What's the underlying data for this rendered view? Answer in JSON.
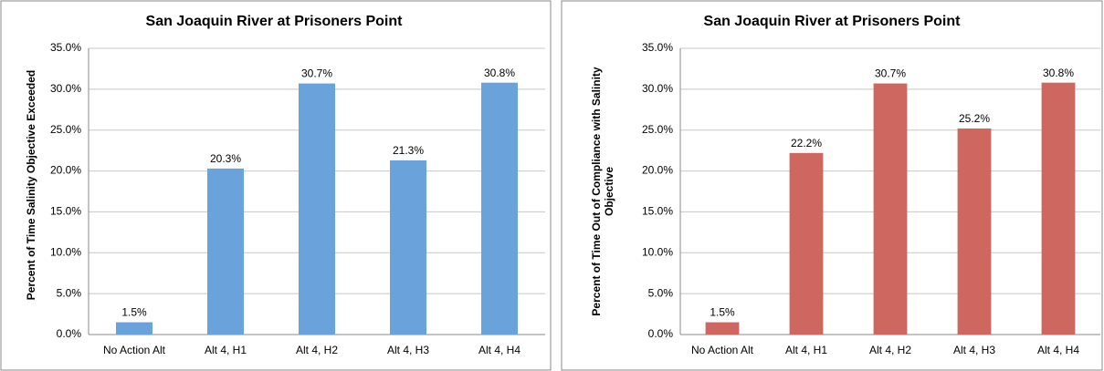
{
  "chart_data": [
    {
      "type": "bar",
      "title": "San Joaquin River at Prisoners Point",
      "y_label": "Percent of Time Salinity Objective Exceeded",
      "categories": [
        "No Action Alt",
        "Alt 4, H1",
        "Alt 4, H2",
        "Alt 4, H3",
        "Alt 4, H4"
      ],
      "values": [
        1.5,
        20.3,
        30.7,
        21.3,
        30.8
      ],
      "value_labels": [
        "1.5%",
        "20.3%",
        "30.7%",
        "21.3%",
        "30.8%"
      ],
      "color": "#6aa2dc",
      "ylim": [
        0,
        35
      ],
      "yticks": [
        {
          "value": 0,
          "label": "0.0%"
        },
        {
          "value": 5,
          "label": "5.0%"
        },
        {
          "value": 10,
          "label": "10.0%"
        },
        {
          "value": 15,
          "label": "15.0%"
        },
        {
          "value": 20,
          "label": "20.0%"
        },
        {
          "value": 25,
          "label": "25.0%"
        },
        {
          "value": 30,
          "label": "30.0%"
        },
        {
          "value": 35,
          "label": "35.0%"
        }
      ],
      "grid": true
    },
    {
      "type": "bar",
      "title": "San Joaquin River at Prisoners Point",
      "y_label": "Percent of Time Out of Compliance with Salinity Objective",
      "categories": [
        "No Action Alt",
        "Alt 4, H1",
        "Alt 4, H2",
        "Alt 4, H3",
        "Alt 4, H4"
      ],
      "values": [
        1.5,
        22.2,
        30.7,
        25.2,
        30.8
      ],
      "value_labels": [
        "1.5%",
        "22.2%",
        "30.7%",
        "25.2%",
        "30.8%"
      ],
      "color": "#cd6760",
      "ylim": [
        0,
        35
      ],
      "yticks": [
        {
          "value": 0,
          "label": "0.0%"
        },
        {
          "value": 5,
          "label": "5.0%"
        },
        {
          "value": 10,
          "label": "10.0%"
        },
        {
          "value": 15,
          "label": "15.0%"
        },
        {
          "value": 20,
          "label": "20.0%"
        },
        {
          "value": 25,
          "label": "25.0%"
        },
        {
          "value": 30,
          "label": "30.0%"
        },
        {
          "value": 35,
          "label": "35.0%"
        }
      ],
      "grid": true
    }
  ]
}
